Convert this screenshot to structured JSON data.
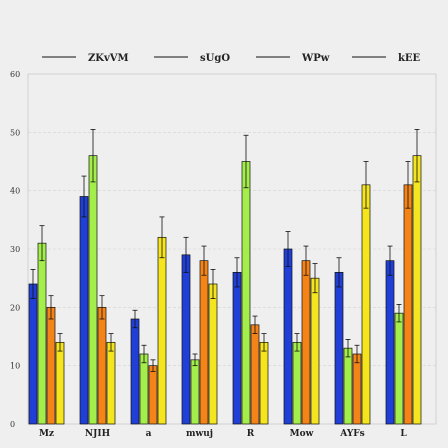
{
  "chart_data": {
    "type": "bar",
    "title": "",
    "xlabel": "",
    "ylabel": "",
    "categories": [
      "Mz",
      "NJIH",
      "a",
      "mwuj",
      "R",
      "Mow",
      "AYFs",
      "L"
    ],
    "ylim": [
      0,
      60
    ],
    "yticks": [
      0,
      10,
      20,
      30,
      40,
      50,
      60
    ],
    "grid": true,
    "legend_position": "top",
    "series": [
      {
        "name": "ZKvVM",
        "color": "#1f3fd6",
        "values": [
          24,
          39,
          18,
          29,
          26,
          30,
          26,
          28
        ],
        "errors": [
          2.5,
          3.5,
          1.5,
          3,
          2.5,
          3,
          2.5,
          2.5
        ]
      },
      {
        "name": "sUgO",
        "color": "#a4ee4c",
        "values": [
          31,
          46,
          12,
          11,
          45,
          14,
          13,
          19
        ],
        "errors": [
          3,
          4.5,
          1.5,
          1,
          4.5,
          1.5,
          1.5,
          1.5
        ]
      },
      {
        "name": "WPw",
        "color": "#f58418",
        "values": [
          20,
          20,
          10,
          28,
          17,
          28,
          12,
          41
        ],
        "errors": [
          2,
          2,
          1,
          2.5,
          1.5,
          2.5,
          1.5,
          4
        ]
      },
      {
        "name": "kEE",
        "color": "#f5e51e",
        "values": [
          14,
          14,
          32,
          24,
          14,
          25,
          41,
          46
        ],
        "errors": [
          1.5,
          1.5,
          3.5,
          2.5,
          1.5,
          2.5,
          4,
          4.5
        ]
      }
    ]
  }
}
